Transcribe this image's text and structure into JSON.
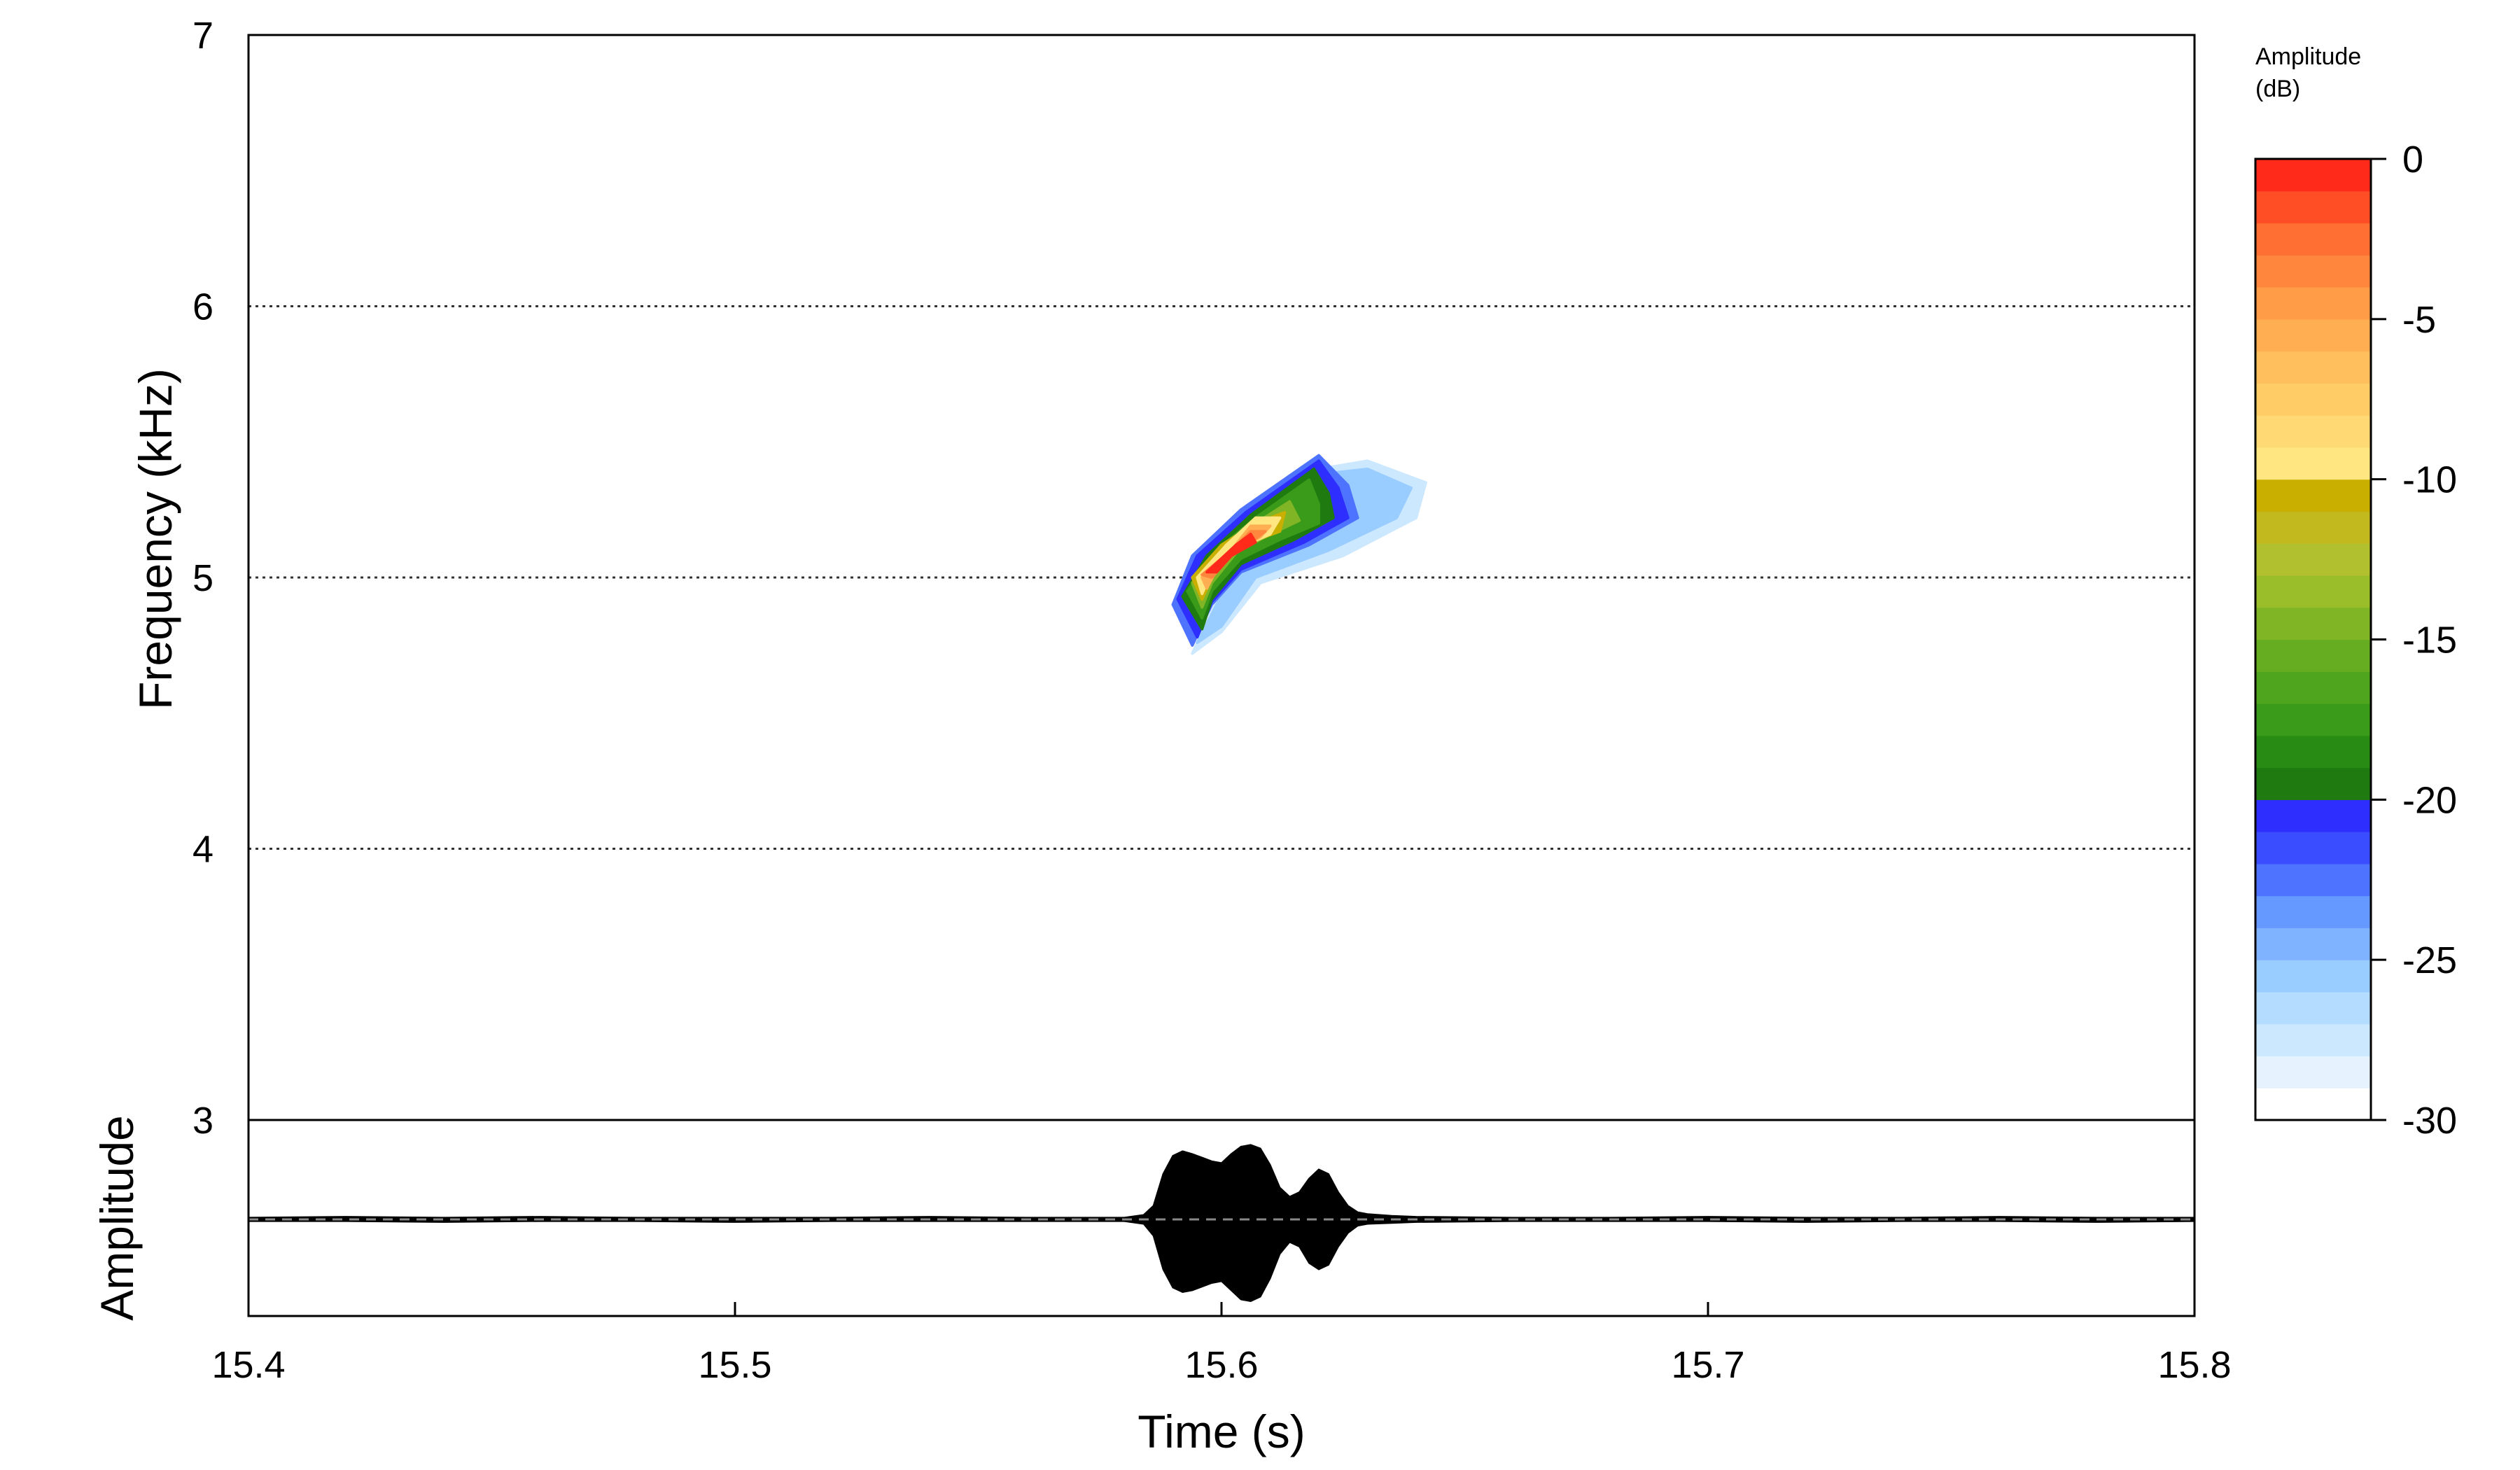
{
  "chart_data": {
    "type": "heatmap",
    "title": "",
    "xlabel": "Time (s)",
    "ylabel": "Frequency (kHz)",
    "amplitude_label": "Amplitude",
    "xlim": [
      15.4,
      15.8
    ],
    "ylim": [
      3,
      7
    ],
    "x_ticks": [
      "15.4",
      "15.5",
      "15.6",
      "15.7",
      "15.8"
    ],
    "y_ticks": [
      "3",
      "4",
      "5",
      "6",
      "7"
    ],
    "gridlines": "horizontal dotted",
    "colorbar": {
      "title_line1": "Amplitude",
      "title_line2": "(dB)",
      "range": [
        -30,
        0
      ],
      "ticks": [
        "0",
        "-5",
        "-10",
        "-15",
        "-20",
        "-25",
        "-30"
      ],
      "bands": [
        "#ffffff",
        "#e6f3ff",
        "#cce8ff",
        "#b3dcff",
        "#99ccff",
        "#80b3ff",
        "#6699ff",
        "#4d73ff",
        "#3a4dff",
        "#2e2eff",
        "#1f7a0f",
        "#288c14",
        "#3a9a1a",
        "#4fa51e",
        "#66ad22",
        "#80b526",
        "#9abd2a",
        "#b0c02e",
        "#c2b91f",
        "#c9b000",
        "#ffe680",
        "#ffd973",
        "#ffcc66",
        "#ffbf5c",
        "#ffae52",
        "#ff9c47",
        "#ff873d",
        "#ff6e33",
        "#ff4d26",
        "#ff2a1a"
      ],
      "placement": "right"
    },
    "contour_levels": [
      {
        "level_db": -28,
        "color": "#cce8ff",
        "points": [
          [
            15.594,
            4.72
          ],
          [
            15.6,
            4.95
          ],
          [
            15.61,
            5.18
          ],
          [
            15.62,
            5.4
          ],
          [
            15.63,
            5.43
          ],
          [
            15.642,
            5.35
          ],
          [
            15.64,
            5.22
          ],
          [
            15.625,
            5.08
          ],
          [
            15.608,
            4.98
          ],
          [
            15.6,
            4.8
          ]
        ]
      },
      {
        "level_db": -26,
        "color": "#99ccff",
        "points": [
          [
            15.595,
            4.76
          ],
          [
            15.601,
            4.97
          ],
          [
            15.611,
            5.19
          ],
          [
            15.62,
            5.38
          ],
          [
            15.63,
            5.4
          ],
          [
            15.639,
            5.33
          ],
          [
            15.636,
            5.22
          ],
          [
            15.622,
            5.1
          ],
          [
            15.607,
            5.0
          ],
          [
            15.6,
            4.82
          ]
        ]
      },
      {
        "level_db": -22,
        "color": "#4d73ff",
        "points": [
          [
            15.59,
            4.9
          ],
          [
            15.594,
            5.08
          ],
          [
            15.604,
            5.25
          ],
          [
            15.62,
            5.45
          ],
          [
            15.626,
            5.34
          ],
          [
            15.628,
            5.22
          ],
          [
            15.618,
            5.12
          ],
          [
            15.604,
            5.02
          ],
          [
            15.598,
            4.9
          ],
          [
            15.594,
            4.75
          ]
        ]
      },
      {
        "level_db": -20,
        "color": "#2e2eff",
        "points": [
          [
            15.591,
            4.92
          ],
          [
            15.595,
            5.08
          ],
          [
            15.605,
            5.24
          ],
          [
            15.62,
            5.43
          ],
          [
            15.624,
            5.33
          ],
          [
            15.626,
            5.22
          ],
          [
            15.617,
            5.13
          ],
          [
            15.604,
            5.03
          ],
          [
            15.598,
            4.91
          ],
          [
            15.595,
            4.78
          ]
        ]
      },
      {
        "level_db": -19,
        "color": "#1f7a0f",
        "points": [
          [
            15.592,
            4.93
          ],
          [
            15.597,
            5.08
          ],
          [
            15.606,
            5.23
          ],
          [
            15.619,
            5.4
          ],
          [
            15.622,
            5.31
          ],
          [
            15.623,
            5.22
          ],
          [
            15.615,
            5.14
          ],
          [
            15.604,
            5.05
          ],
          [
            15.598,
            4.92
          ],
          [
            15.596,
            4.81
          ]
        ]
      },
      {
        "level_db": -16,
        "color": "#3a9a1a",
        "points": [
          [
            15.593,
            4.95
          ],
          [
            15.599,
            5.1
          ],
          [
            15.607,
            5.22
          ],
          [
            15.618,
            5.36
          ],
          [
            15.62,
            5.27
          ],
          [
            15.62,
            5.2
          ],
          [
            15.612,
            5.14
          ],
          [
            15.604,
            5.07
          ],
          [
            15.598,
            4.95
          ],
          [
            15.596,
            4.85
          ]
        ]
      },
      {
        "level_db": -13,
        "color": "#80b526",
        "points": [
          [
            15.594,
            4.98
          ],
          [
            15.6,
            5.12
          ],
          [
            15.607,
            5.2
          ],
          [
            15.614,
            5.28
          ],
          [
            15.616,
            5.21
          ],
          [
            15.609,
            5.15
          ],
          [
            15.603,
            5.09
          ],
          [
            15.598,
            4.98
          ],
          [
            15.596,
            4.89
          ]
        ]
      },
      {
        "level_db": -10,
        "color": "#c9b000",
        "points": [
          [
            15.594,
            5.0
          ],
          [
            15.6,
            5.12
          ],
          [
            15.607,
            5.2
          ],
          [
            15.613,
            5.24
          ],
          [
            15.612,
            5.17
          ],
          [
            15.606,
            5.13
          ],
          [
            15.601,
            5.08
          ],
          [
            15.598,
            5.0
          ],
          [
            15.596,
            4.92
          ]
        ]
      },
      {
        "level_db": -8,
        "color": "#ffe680",
        "points": [
          [
            15.595,
            5.0
          ],
          [
            15.601,
            5.12
          ],
          [
            15.607,
            5.22
          ],
          [
            15.612,
            5.22
          ],
          [
            15.61,
            5.16
          ],
          [
            15.605,
            5.12
          ],
          [
            15.6,
            5.06
          ],
          [
            15.597,
            4.98
          ],
          [
            15.596,
            4.94
          ]
        ]
      },
      {
        "level_db": -5,
        "color": "#ffae52",
        "points": [
          [
            15.596,
            5.0
          ],
          [
            15.602,
            5.1
          ],
          [
            15.606,
            5.19
          ],
          [
            15.61,
            5.19
          ],
          [
            15.608,
            5.15
          ],
          [
            15.603,
            5.1
          ],
          [
            15.599,
            5.03
          ],
          [
            15.597,
            4.96
          ]
        ]
      },
      {
        "level_db": -3,
        "color": "#ff873d",
        "points": [
          [
            15.596,
            5.01
          ],
          [
            15.602,
            5.1
          ],
          [
            15.606,
            5.17
          ],
          [
            15.609,
            5.17
          ],
          [
            15.606,
            5.13
          ],
          [
            15.602,
            5.08
          ],
          [
            15.598,
            5.0
          ]
        ]
      },
      {
        "level_db": -1,
        "color": "#ff2a1a",
        "points": [
          [
            15.597,
            5.02
          ],
          [
            15.603,
            5.12
          ],
          [
            15.606,
            5.16
          ],
          [
            15.607,
            5.13
          ],
          [
            15.602,
            5.08
          ],
          [
            15.599,
            5.02
          ]
        ]
      }
    ],
    "waveform_envelope": {
      "baseline": 0,
      "x": [
        15.4,
        15.42,
        15.44,
        15.46,
        15.48,
        15.5,
        15.52,
        15.54,
        15.56,
        15.58,
        15.584,
        15.586,
        15.588,
        15.59,
        15.592,
        15.594,
        15.596,
        15.598,
        15.6,
        15.602,
        15.604,
        15.606,
        15.608,
        15.61,
        15.612,
        15.614,
        15.616,
        15.618,
        15.62,
        15.622,
        15.624,
        15.626,
        15.628,
        15.63,
        15.635,
        15.64,
        15.66,
        15.68,
        15.7,
        15.72,
        15.74,
        15.76,
        15.78,
        15.8
      ],
      "upper": [
        0.02,
        0.03,
        0.02,
        0.03,
        0.02,
        0.02,
        0.02,
        0.03,
        0.02,
        0.02,
        0.05,
        0.15,
        0.5,
        0.7,
        0.75,
        0.72,
        0.68,
        0.64,
        0.62,
        0.72,
        0.8,
        0.82,
        0.78,
        0.6,
        0.35,
        0.25,
        0.3,
        0.45,
        0.55,
        0.5,
        0.3,
        0.15,
        0.08,
        0.06,
        0.04,
        0.03,
        0.02,
        0.02,
        0.03,
        0.02,
        0.02,
        0.03,
        0.02,
        0.02
      ],
      "lower": [
        -0.02,
        -0.02,
        -0.03,
        -0.02,
        -0.02,
        -0.03,
        -0.02,
        -0.02,
        -0.02,
        -0.02,
        -0.05,
        -0.18,
        -0.55,
        -0.75,
        -0.8,
        -0.78,
        -0.74,
        -0.7,
        -0.68,
        -0.78,
        -0.88,
        -0.9,
        -0.85,
        -0.65,
        -0.38,
        -0.25,
        -0.3,
        -0.48,
        -0.55,
        -0.5,
        -0.3,
        -0.15,
        -0.07,
        -0.05,
        -0.04,
        -0.03,
        -0.02,
        -0.02,
        -0.02,
        -0.03,
        -0.02,
        -0.02,
        -0.03,
        -0.02
      ]
    }
  }
}
